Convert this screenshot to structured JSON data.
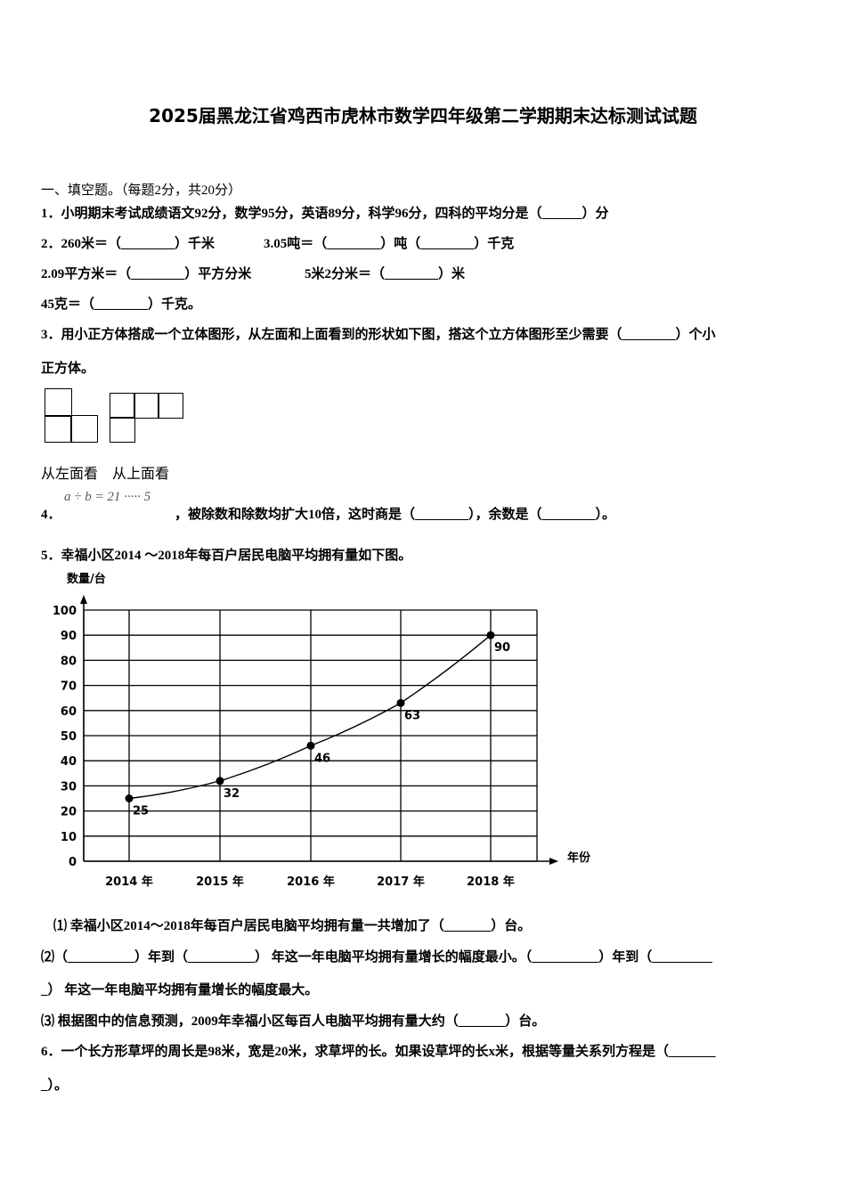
{
  "title": "2025届黑龙江省鸡西市虎林市数学四年级第二学期期末达标测试试题",
  "section1": "一、填空题。（每题2分，共20分）",
  "q1": "1．小明期末考试成绩语文92分，数学95分，英语89分，科学96分，四科的平均分是（______）分",
  "q2a": "2．260米＝（________）千米",
  "q2b": "3.05吨＝（________）吨（________）千克",
  "q2c": "2.09平方米＝（________）平方分米",
  "q2d": "5米2分米＝（________）米",
  "q2e": "45克＝（________）千克。",
  "q3a": "3．用小正方体搭成一个立体图形，从左面和上面看到的形状如下图，搭这个立方体图形至少需要（________）个小",
  "q3b": "正方体。",
  "q3_labels": "从左面看　从上面看",
  "q4_num": "4．",
  "q4_formula": "a ÷ b = 21 ····· 5",
  "q4_text": "，被除数和除数均扩大10倍，这时商是（________），余数是（________）。",
  "q5": "5．幸福小区2014 ～2018年每百户居民电脑平均拥有量如下图。",
  "q5_1": "⑴ 幸福小区2014～2018年每百户居民电脑平均拥有量一共增加了（_______）台。",
  "q5_2a": "⑵（__________）年到（__________） 年这一年电脑平均拥有量增长的幅度最小。（__________）年到（_________",
  "q5_2b": "_） 年这一年电脑平均拥有量增长的幅度最大。",
  "q5_3": "⑶ 根据图中的信息预测，2009年幸福小区每百人电脑平均拥有量大约（_______）台。",
  "q6a": "6．一个长方形草坪的周长是98米，宽是20米，求草坪的长。如果设草坪的长x米，根据等量关系列方程是（_______",
  "q6b": "_）。",
  "chart_data": {
    "type": "line",
    "ylabel": "数量/台",
    "xlabel": "年份",
    "categories": [
      "2014 年",
      "2015 年",
      "2016 年",
      "2017 年",
      "2018 年"
    ],
    "values": [
      25,
      32,
      46,
      63,
      90
    ],
    "data_labels": [
      "25",
      "32",
      "46",
      "63",
      "90"
    ],
    "yticks": [
      "0",
      "10",
      "20",
      "30",
      "40",
      "50",
      "60",
      "70",
      "80",
      "90",
      "100"
    ],
    "ylim": [
      0,
      100
    ],
    "grid": true
  }
}
